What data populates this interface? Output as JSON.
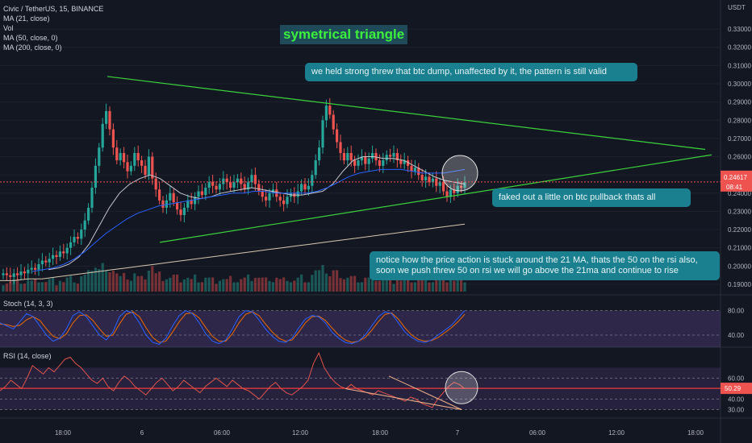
{
  "header": {
    "symbol_line": "Civic / TetherUS, 15, BINANCE",
    "indicators": [
      "MA (21, close)",
      "Vol",
      "MA (50, close, 0)",
      "MA (200, close, 0)"
    ],
    "currency": "USDT"
  },
  "annotations": {
    "title": "symetrical triangle",
    "note_top": "we held strong threw that btc dump, unaffected by it, the pattern is still valid",
    "note_mid": "faked out a little on btc pullback thats all",
    "note_bottom": "notice how the price action is stuck around the 21 MA, thats the 50 on the rsi also, soon we push threw 50 on rsi we will go above the 21ma and continue to rise"
  },
  "panes": {
    "stoch_label": "Stoch (14, 3, 3)",
    "rsi_label": "RSI (14, close)"
  },
  "chart_data": {
    "type": "candlestick",
    "price_axis": {
      "ticks": [
        "0.33000",
        "0.32000",
        "0.31000",
        "0.30000",
        "0.29000",
        "0.28000",
        "0.27000",
        "0.26000",
        "0.25000",
        "0.24000",
        "0.23000",
        "0.22000",
        "0.21000",
        "0.20000",
        "0.19000"
      ],
      "ylim": [
        0.186,
        0.338
      ],
      "last_price": "0.24617",
      "countdown": "08:41"
    },
    "time_axis": {
      "ticks": [
        "18:00",
        "6",
        "06:00",
        "12:00",
        "18:00",
        "7",
        "06:00",
        "12:00",
        "18:00"
      ]
    },
    "candle_closes": [
      0.196,
      0.195,
      0.194,
      0.196,
      0.195,
      0.197,
      0.196,
      0.198,
      0.199,
      0.198,
      0.201,
      0.203,
      0.202,
      0.204,
      0.206,
      0.205,
      0.208,
      0.207,
      0.21,
      0.213,
      0.216,
      0.215,
      0.22,
      0.225,
      0.232,
      0.243,
      0.255,
      0.265,
      0.278,
      0.285,
      0.275,
      0.265,
      0.258,
      0.262,
      0.257,
      0.252,
      0.255,
      0.262,
      0.258,
      0.255,
      0.25,
      0.26,
      0.248,
      0.242,
      0.236,
      0.232,
      0.236,
      0.24,
      0.235,
      0.231,
      0.228,
      0.232,
      0.236,
      0.234,
      0.238,
      0.241,
      0.239,
      0.243,
      0.246,
      0.244,
      0.242,
      0.245,
      0.248,
      0.246,
      0.243,
      0.246,
      0.248,
      0.245,
      0.242,
      0.246,
      0.25,
      0.245,
      0.241,
      0.238,
      0.236,
      0.24,
      0.242,
      0.238,
      0.236,
      0.234,
      0.238,
      0.24,
      0.238,
      0.241,
      0.245,
      0.242,
      0.244,
      0.25,
      0.258,
      0.265,
      0.28,
      0.288,
      0.283,
      0.275,
      0.268,
      0.262,
      0.258,
      0.262,
      0.258,
      0.255,
      0.258,
      0.26,
      0.256,
      0.259,
      0.262,
      0.258,
      0.255,
      0.258,
      0.261,
      0.26,
      0.262,
      0.258,
      0.256,
      0.258,
      0.255,
      0.252,
      0.254,
      0.25,
      0.247,
      0.249,
      0.246,
      0.248,
      0.244,
      0.246,
      0.241,
      0.238,
      0.242,
      0.24,
      0.244,
      0.243,
      0.246
    ],
    "ma_21": [
      0.198,
      0.199,
      0.201,
      0.205,
      0.212,
      0.222,
      0.232,
      0.24,
      0.245,
      0.248,
      0.25,
      0.248,
      0.244,
      0.24,
      0.238,
      0.237,
      0.238,
      0.24,
      0.241,
      0.242,
      0.243,
      0.242,
      0.241,
      0.24,
      0.239,
      0.239,
      0.24,
      0.241,
      0.245,
      0.252,
      0.258,
      0.26,
      0.26,
      0.259,
      0.259,
      0.258,
      0.255,
      0.252,
      0.249,
      0.247,
      0.246,
      0.245
    ],
    "ma_50": [
      0.197,
      0.198,
      0.199,
      0.201,
      0.204,
      0.208,
      0.213,
      0.218,
      0.222,
      0.226,
      0.229,
      0.231,
      0.233,
      0.234,
      0.235,
      0.236,
      0.237,
      0.238,
      0.239,
      0.24,
      0.24,
      0.241,
      0.241,
      0.24,
      0.24,
      0.24,
      0.24,
      0.241,
      0.243,
      0.246,
      0.249,
      0.251,
      0.252,
      0.253,
      0.253,
      0.253,
      0.252,
      0.251,
      0.251,
      0.251,
      0.252,
      0.253
    ],
    "ma_200": [
      0.192,
      0.192,
      0.193,
      0.193,
      0.194,
      0.195,
      0.196,
      0.197,
      0.198,
      0.199,
      0.2,
      0.201,
      0.202,
      0.203,
      0.204,
      0.205,
      0.206,
      0.207,
      0.208,
      0.209,
      0.21,
      0.211,
      0.212,
      0.213,
      0.214,
      0.215,
      0.216,
      0.217,
      0.218,
      0.219,
      0.22,
      0.221,
      0.222,
      0.223
    ],
    "triangle": {
      "upper_start": 0.304,
      "upper_end": 0.264,
      "lower_start": 0.213,
      "lower_end": 0.261
    },
    "stoch": {
      "axis_ticks": [
        "80.00",
        "40.00"
      ],
      "k": [
        60,
        55,
        50,
        62,
        75,
        70,
        55,
        40,
        30,
        35,
        50,
        72,
        78,
        70,
        55,
        40,
        32,
        45,
        70,
        80,
        76,
        60,
        40,
        28,
        25,
        35,
        55,
        72,
        80,
        75,
        60,
        42,
        30,
        26,
        32,
        50,
        70,
        80,
        78,
        65,
        50,
        38,
        30,
        28,
        35,
        52,
        66,
        72,
        70,
        60,
        45,
        35,
        28,
        26,
        30,
        40,
        55,
        70,
        78,
        75,
        60,
        45,
        36,
        30,
        28,
        32,
        40,
        48,
        56,
        68,
        80
      ],
      "d": [
        58,
        57,
        54,
        56,
        65,
        70,
        64,
        50,
        38,
        34,
        42,
        60,
        72,
        73,
        64,
        50,
        38,
        40,
        58,
        74,
        78,
        70,
        52,
        36,
        28,
        30,
        45,
        62,
        75,
        76,
        68,
        52,
        38,
        30,
        30,
        42,
        60,
        74,
        78,
        72,
        58,
        45,
        35,
        30,
        32,
        45,
        60,
        70,
        71,
        64,
        52,
        40,
        32,
        28,
        30,
        36,
        48,
        62,
        74,
        76,
        66,
        52,
        40,
        33,
        30,
        31,
        36,
        44,
        52,
        62,
        74
      ]
    },
    "rsi": {
      "axis_ticks": [
        "60.00",
        "40.00",
        "30.00"
      ],
      "current": "50.29",
      "values": [
        48,
        52,
        58,
        54,
        50,
        60,
        72,
        68,
        64,
        70,
        66,
        72,
        78,
        80,
        74,
        70,
        64,
        58,
        55,
        60,
        52,
        48,
        56,
        62,
        58,
        52,
        48,
        44,
        50,
        56,
        60,
        54,
        48,
        52,
        58,
        54,
        50,
        46,
        52,
        56,
        60,
        56,
        52,
        58,
        54,
        50,
        48,
        44,
        40,
        46,
        52,
        56,
        50,
        46,
        44,
        48,
        52,
        58,
        74,
        84,
        70,
        62,
        56,
        52,
        50,
        54,
        50,
        48,
        46,
        44,
        48,
        46,
        44,
        42,
        40,
        38,
        42,
        40,
        36,
        34,
        32,
        40,
        46,
        52,
        56,
        54,
        50
      ]
    }
  }
}
